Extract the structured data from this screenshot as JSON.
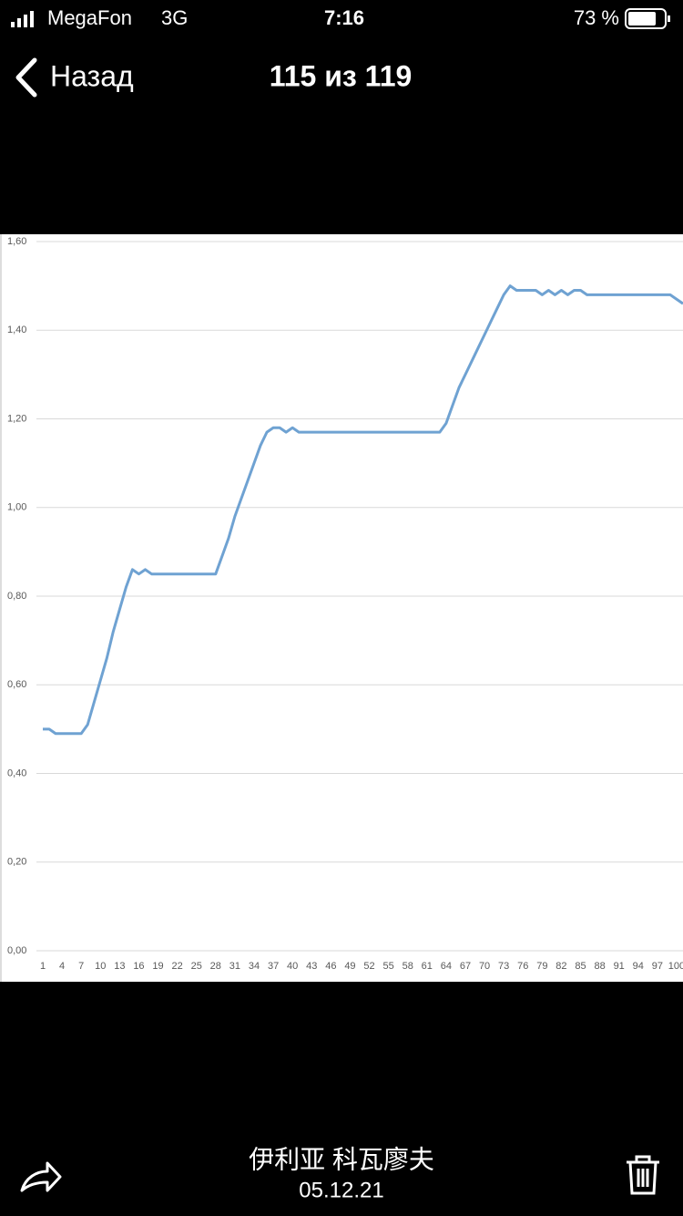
{
  "status_bar": {
    "carrier": "MegaFon",
    "network": "3G",
    "time": "7:16",
    "battery": "73 %"
  },
  "nav": {
    "back": "Назад",
    "title": "115 из 119"
  },
  "chart_data": {
    "type": "line",
    "categories": [
      1,
      null,
      null,
      4,
      null,
      null,
      7,
      null,
      null,
      10,
      null,
      null,
      13,
      null,
      null,
      16,
      null,
      null,
      19,
      null,
      null,
      22,
      null,
      null,
      25,
      null,
      null,
      28,
      null,
      null,
      31,
      null,
      null,
      34,
      null,
      null,
      37,
      null,
      null,
      40,
      null,
      null,
      43,
      null,
      null,
      46,
      null,
      null,
      49,
      null,
      null,
      52,
      null,
      null,
      55,
      null,
      null,
      58,
      null,
      null,
      61,
      null,
      null,
      64,
      null,
      null,
      67,
      null,
      null,
      70,
      null,
      null,
      73,
      null,
      null,
      76,
      null,
      null,
      79,
      null,
      null,
      82,
      null,
      null,
      85,
      null,
      null,
      88,
      null,
      null,
      91,
      null,
      null,
      94,
      null,
      null,
      97,
      null,
      null,
      100,
      null
    ],
    "values": [
      0.5,
      0.5,
      0.49,
      0.49,
      0.49,
      0.49,
      0.49,
      0.51,
      0.56,
      0.61,
      0.66,
      0.72,
      0.77,
      0.82,
      0.86,
      0.85,
      0.86,
      0.85,
      0.85,
      0.85,
      0.85,
      0.85,
      0.85,
      0.85,
      0.85,
      0.85,
      0.85,
      0.85,
      0.89,
      0.93,
      0.98,
      1.02,
      1.06,
      1.1,
      1.14,
      1.17,
      1.18,
      1.18,
      1.17,
      1.18,
      1.17,
      1.17,
      1.17,
      1.17,
      1.17,
      1.17,
      1.17,
      1.17,
      1.17,
      1.17,
      1.17,
      1.17,
      1.17,
      1.17,
      1.17,
      1.17,
      1.17,
      1.17,
      1.17,
      1.17,
      1.17,
      1.17,
      1.17,
      1.19,
      1.23,
      1.27,
      1.3,
      1.33,
      1.36,
      1.39,
      1.42,
      1.45,
      1.48,
      1.5,
      1.49,
      1.49,
      1.49,
      1.49,
      1.48,
      1.49,
      1.48,
      1.49,
      1.48,
      1.49,
      1.49,
      1.48,
      1.48,
      1.48,
      1.48,
      1.48,
      1.48,
      1.48,
      1.48,
      1.48,
      1.48,
      1.48,
      1.48,
      1.48,
      1.48,
      1.47,
      1.46
    ],
    "color": "#6fa2d2",
    "ylim": [
      0,
      1.6
    ],
    "yticks": [
      {
        "value": 0,
        "label": "0,00"
      },
      {
        "value": 0.2,
        "label": "0,20"
      },
      {
        "value": 0.4,
        "label": "0,40"
      },
      {
        "value": 0.6,
        "label": "0,60"
      },
      {
        "value": 0.8,
        "label": "0,80"
      },
      {
        "value": 1.0,
        "label": "1,00"
      },
      {
        "value": 1.2,
        "label": "1,20"
      },
      {
        "value": 1.4,
        "label": "1,40"
      },
      {
        "value": 1.6,
        "label": "1,60"
      }
    ],
    "grid": true
  },
  "footer": {
    "name": "伊利亚 科瓦廖夫",
    "date": "05.12.21"
  }
}
